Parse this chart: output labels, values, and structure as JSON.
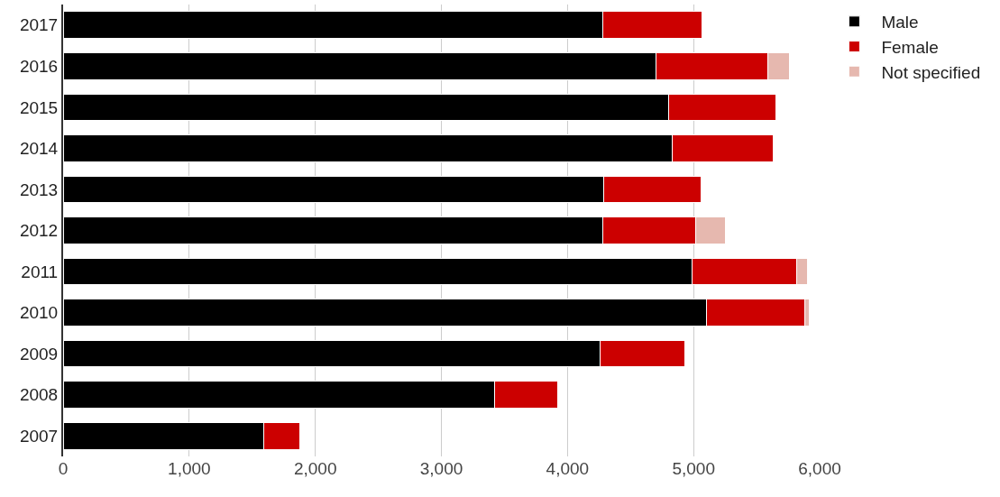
{
  "chart_data": {
    "type": "bar",
    "orientation": "horizontal",
    "stacked": true,
    "categories": [
      "2017",
      "2016",
      "2015",
      "2014",
      "2013",
      "2012",
      "2011",
      "2010",
      "2009",
      "2008",
      "2007"
    ],
    "series": [
      {
        "name": "Male",
        "color": "#000000",
        "values": [
          4280,
          4700,
          4800,
          4830,
          4290,
          4280,
          4990,
          5100,
          4260,
          3420,
          1590
        ]
      },
      {
        "name": "Female",
        "color": "#cc0000",
        "values": [
          790,
          890,
          850,
          800,
          770,
          740,
          830,
          780,
          670,
          500,
          290
        ]
      },
      {
        "name": "Not specified",
        "color": "#e6b8af",
        "values": [
          null,
          170,
          null,
          null,
          null,
          230,
          80,
          40,
          null,
          null,
          null
        ]
      }
    ],
    "xlim": [
      0,
      6000
    ],
    "xticks": [
      {
        "value": 0,
        "label": "0"
      },
      {
        "value": 1000,
        "label": "1,000"
      },
      {
        "value": 2000,
        "label": "2,000"
      },
      {
        "value": 3000,
        "label": "3,000"
      },
      {
        "value": 4000,
        "label": "4,000"
      },
      {
        "value": 5000,
        "label": "5,000"
      },
      {
        "value": 6000,
        "label": "6,000"
      }
    ],
    "grid": "x",
    "legend": "right"
  }
}
